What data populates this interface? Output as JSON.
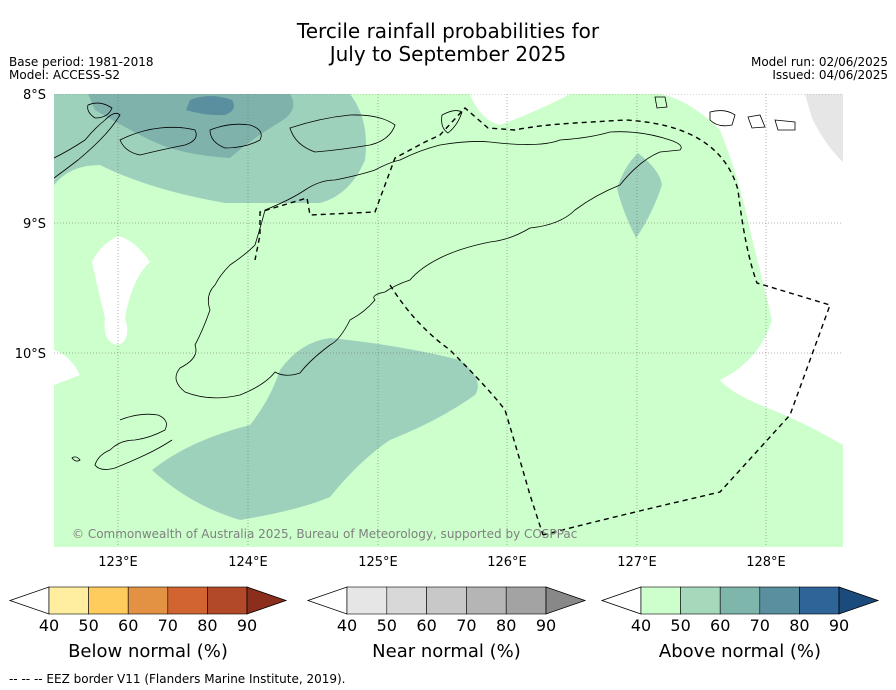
{
  "title_line1": "Tercile rainfall probabilities for",
  "title_line2": "July to September 2025",
  "meta": {
    "base_period": "Base period: 1981-2018",
    "model": "Model: ACCESS-S2",
    "model_run": "Model run: 02/06/2025",
    "issued": "Issued: 04/06/2025"
  },
  "map": {
    "lat_labels": [
      "8°S",
      "9°S",
      "10°S"
    ],
    "lon_labels": [
      "123°E",
      "124°E",
      "125°E",
      "126°E",
      "127°E",
      "128°E"
    ],
    "copyright": "© Commonwealth of Australia 2025, Bureau of Meteorology, supported by COSPPac"
  },
  "colorbars": [
    {
      "label": "Below normal (%)",
      "ticks": [
        "40",
        "50",
        "60",
        "70",
        "80",
        "90"
      ],
      "colors": [
        "#ffffff",
        "#ffeda0",
        "#fecc5c",
        "#e39244",
        "#d26432",
        "#b24a2a",
        "#8c2e1c"
      ]
    },
    {
      "label": "Near normal (%)",
      "ticks": [
        "40",
        "50",
        "60",
        "70",
        "80",
        "90"
      ],
      "colors": [
        "#ffffff",
        "#e6e6e6",
        "#d8d8d8",
        "#c8c8c8",
        "#b5b5b5",
        "#a3a3a3",
        "#888888"
      ]
    },
    {
      "label": "Above normal (%)",
      "ticks": [
        "40",
        "50",
        "60",
        "70",
        "80",
        "90"
      ],
      "colors": [
        "#ffffff",
        "#ccffcc",
        "#a6d8bb",
        "#7fb6ab",
        "#5a8f9f",
        "#2f6499",
        "#1b4a7d"
      ]
    }
  ],
  "footer": "--  --  -- EEZ border V11 (Flanders Marine Institute, 2019)."
}
